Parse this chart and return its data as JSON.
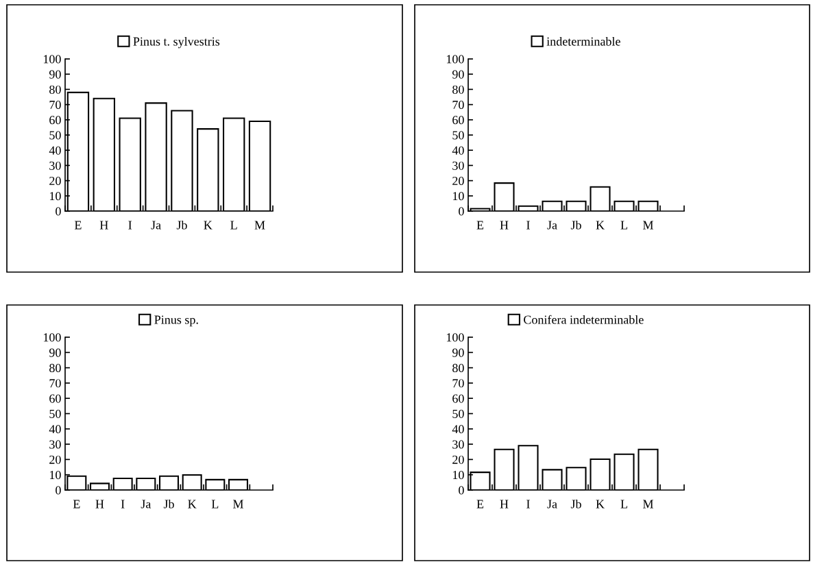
{
  "chart_data": [
    {
      "type": "bar",
      "categories": [
        "E",
        "H",
        "I",
        "Ja",
        "Jb",
        "K",
        "L",
        "M"
      ],
      "series": [
        {
          "name": "Pinus t. sylvestris",
          "color": "#ffffff",
          "values": [
            78,
            74,
            61,
            71,
            66,
            54,
            61,
            59
          ]
        }
      ],
      "ylim": [
        0,
        100
      ],
      "yticks": [
        0,
        10,
        20,
        30,
        40,
        50,
        60,
        70,
        80,
        90,
        100
      ],
      "grid": false,
      "legend": "top"
    },
    {
      "type": "bar",
      "categories": [
        "E",
        "H",
        "I",
        "Ja",
        "Jb",
        "K",
        "L",
        "M",
        null
      ],
      "series": [
        {
          "name": "indeterminable",
          "color": "#ffffff",
          "values": [
            1.6,
            18.4,
            3.3,
            6.4,
            6.4,
            15.9,
            6.4,
            6.4,
            null
          ]
        }
      ],
      "ylim": [
        0,
        100
      ],
      "yticks": [
        0,
        10,
        20,
        30,
        40,
        50,
        60,
        70,
        80,
        90,
        100
      ],
      "grid": false,
      "legend": "top"
    },
    {
      "type": "bar",
      "categories": [
        "E",
        "H",
        "I",
        "Ja",
        "Jb",
        "K",
        "L",
        "M",
        null
      ],
      "series": [
        {
          "name": "Pinus sp.",
          "color": "#ffffff",
          "values": [
            9.1,
            4.3,
            7.6,
            7.6,
            9.1,
            9.9,
            6.8,
            6.8,
            null
          ]
        }
      ],
      "ylim": [
        0,
        100
      ],
      "yticks": [
        0,
        10,
        20,
        30,
        40,
        50,
        60,
        70,
        80,
        90,
        100
      ],
      "grid": false,
      "legend": "top"
    },
    {
      "type": "bar",
      "categories": [
        "E",
        "H",
        "I",
        "Ja",
        "Jb",
        "K",
        "L",
        "M",
        null
      ],
      "series": [
        {
          "name": "Conifera indeterminable",
          "color": "#ffffff",
          "values": [
            11.6,
            26.6,
            29,
            13.3,
            14.7,
            20.2,
            23.4,
            26.6,
            null
          ]
        }
      ],
      "ylim": [
        0,
        100
      ],
      "yticks": [
        0,
        10,
        20,
        30,
        40,
        50,
        60,
        70,
        80,
        90,
        100
      ],
      "grid": false,
      "legend": "top"
    }
  ]
}
